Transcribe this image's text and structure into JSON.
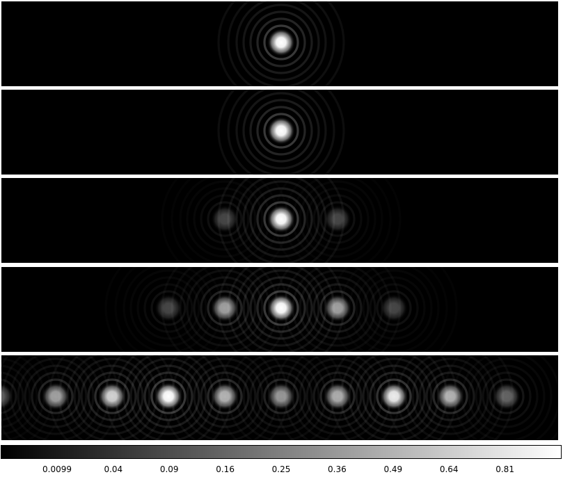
{
  "panels": [
    {
      "spots": [
        {
          "x": 0.0,
          "i": 1.0
        }
      ]
    },
    {
      "spots": [
        {
          "x": 0.0,
          "i": 1.0
        }
      ]
    },
    {
      "spots": [
        {
          "x": 0.0,
          "i": 1.0
        },
        {
          "x": -1.0,
          "i": 0.07
        },
        {
          "x": 1.0,
          "i": 0.07
        }
      ]
    },
    {
      "spots": [
        {
          "x": 0.0,
          "i": 1.0
        },
        {
          "x": -1.0,
          "i": 0.36
        },
        {
          "x": 1.0,
          "i": 0.36
        },
        {
          "x": -2.0,
          "i": 0.07
        },
        {
          "x": 2.0,
          "i": 0.07
        }
      ]
    },
    {
      "spots": [
        {
          "x": -5.0,
          "i": 0.12
        },
        {
          "x": -4.0,
          "i": 0.36
        },
        {
          "x": -3.0,
          "i": 0.62
        },
        {
          "x": -2.0,
          "i": 0.92
        },
        {
          "x": -1.0,
          "i": 0.45
        },
        {
          "x": 0.0,
          "i": 0.32
        },
        {
          "x": 1.0,
          "i": 0.42
        },
        {
          "x": 2.0,
          "i": 0.78
        },
        {
          "x": 3.0,
          "i": 0.45
        },
        {
          "x": 4.0,
          "i": 0.14
        }
      ]
    }
  ],
  "colorbar": {
    "scale": "sqrt",
    "ticks": [
      "0.0099",
      "0.04",
      "0.09",
      "0.16",
      "0.25",
      "0.36",
      "0.49",
      "0.64",
      "0.81"
    ],
    "tick_values": [
      0.0099,
      0.04,
      0.09,
      0.16,
      0.25,
      0.36,
      0.49,
      0.64,
      0.81
    ]
  }
}
